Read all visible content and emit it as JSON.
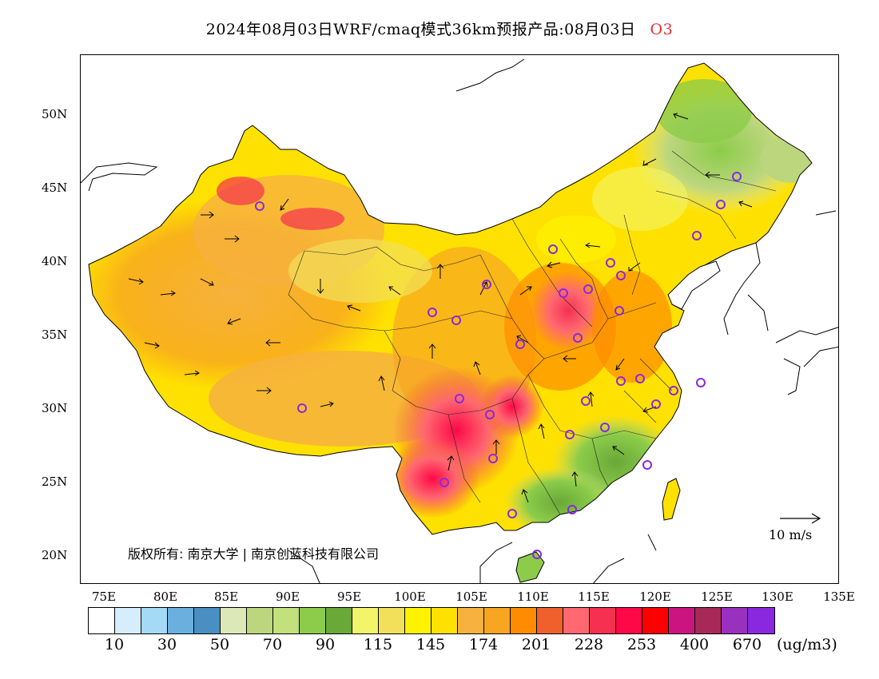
{
  "title": {
    "main": "2024年08月03日WRF/cmaq模式36km预报产品:08月03日",
    "species": "O3"
  },
  "axes": {
    "lat_labels": [
      "50N",
      "45N",
      "40N",
      "35N",
      "30N",
      "25N",
      "20N"
    ],
    "lon_labels": [
      "75E",
      "80E",
      "85E",
      "90E",
      "95E",
      "100E",
      "105E",
      "110E",
      "115E",
      "120E",
      "125E",
      "130E",
      "135E"
    ]
  },
  "copyright": "版权所有: 南京大学 | 南京创蓝科技有限公司",
  "vector_reference": "10 m/s",
  "colorbar": {
    "colors": [
      "#ffffff",
      "#d6eefb",
      "#a4daf5",
      "#6ab0de",
      "#4a8fc2",
      "#dde8b8",
      "#bcd67e",
      "#c2e07c",
      "#8ccc4a",
      "#6aa838",
      "#f2f56a",
      "#f2e05a",
      "#fff200",
      "#ffe100",
      "#f6b23e",
      "#f8a522",
      "#ff8c00",
      "#f0602c",
      "#ff6870",
      "#f53050",
      "#ff0848",
      "#ff0000",
      "#cc1480",
      "#a82858",
      "#9a30c0",
      "#8a28e0"
    ],
    "labels": [
      "10",
      "30",
      "50",
      "70",
      "90",
      "115",
      "145",
      "174",
      "201",
      "228",
      "253",
      "400",
      "670"
    ],
    "unit": "(ug/m3)"
  }
}
